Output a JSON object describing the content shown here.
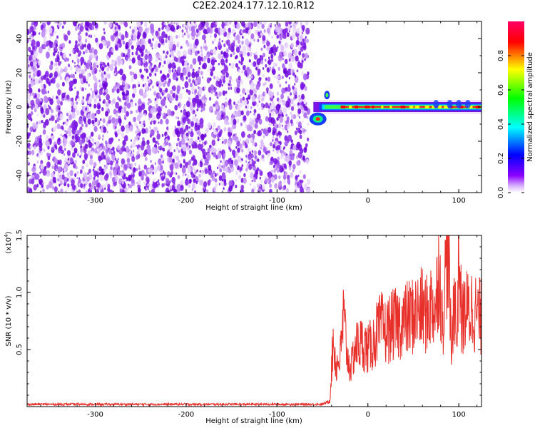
{
  "title": "C2E2.2024.177.12.10.R12",
  "chart_data": [
    {
      "type": "heatmap",
      "xlabel": "Height of straight line (km)",
      "ylabel": "Frequency (Hz)",
      "xlim": [
        -375,
        125
      ],
      "ylim": [
        -50,
        50
      ],
      "xticks": [
        "-300",
        "-200",
        "-100",
        "0",
        "100"
      ],
      "yticks": [
        "40",
        "20",
        "0",
        "-20",
        "-40"
      ],
      "noise_region_x": [
        -375,
        -65
      ],
      "signal_band_hz": [
        -5,
        5
      ],
      "colorbar": {
        "label": "Normalized spectral amplitude",
        "range": [
          0.0,
          1.0
        ],
        "ticks": [
          "0.0",
          "0.2",
          "0.4",
          "0.6",
          "0.8"
        ],
        "colors": [
          "#ffffff",
          "#8b00ff",
          "#0000ff",
          "#00ffff",
          "#00ff00",
          "#ffff00",
          "#ff0000",
          "#ff0066"
        ]
      },
      "grid": false
    },
    {
      "type": "line",
      "xlabel": "Height of straight line (km)",
      "ylabel": "SNR (10 * v/v)",
      "yscale_label": "(x10",
      "yscale_exp": "4",
      "yscale_close": ")",
      "xlim": [
        -375,
        125
      ],
      "ylim": [
        0,
        1.5
      ],
      "xticks": [
        "-300",
        "-200",
        "-100",
        "0",
        "100"
      ],
      "yticks": [
        "1.5",
        "1.0",
        "0.5"
      ],
      "series": [
        {
          "color": "#e8302a",
          "x": [
            -375,
            -300,
            -200,
            -100,
            -50,
            -42,
            -38,
            -35,
            -30,
            -27,
            -22,
            -18,
            -15,
            -10,
            -5,
            0,
            5,
            10,
            15,
            20,
            25,
            30,
            40,
            50,
            60,
            65,
            70,
            75,
            78,
            82,
            88,
            92,
            95,
            98,
            100,
            103,
            108,
            112,
            115,
            120,
            125
          ],
          "y": [
            0.02,
            0.02,
            0.02,
            0.02,
            0.02,
            0.05,
            0.6,
            0.35,
            0.45,
            0.8,
            0.4,
            0.35,
            0.5,
            0.55,
            0.55,
            0.5,
            0.55,
            0.65,
            0.7,
            0.65,
            0.7,
            0.72,
            0.75,
            0.8,
            0.85,
            0.8,
            0.9,
            0.85,
            1.3,
            0.7,
            1.5,
            0.4,
            1.1,
            0.5,
            1.45,
            0.75,
            0.85,
            0.82,
            0.88,
            0.8,
            0.78
          ]
        }
      ],
      "grid": false
    }
  ]
}
